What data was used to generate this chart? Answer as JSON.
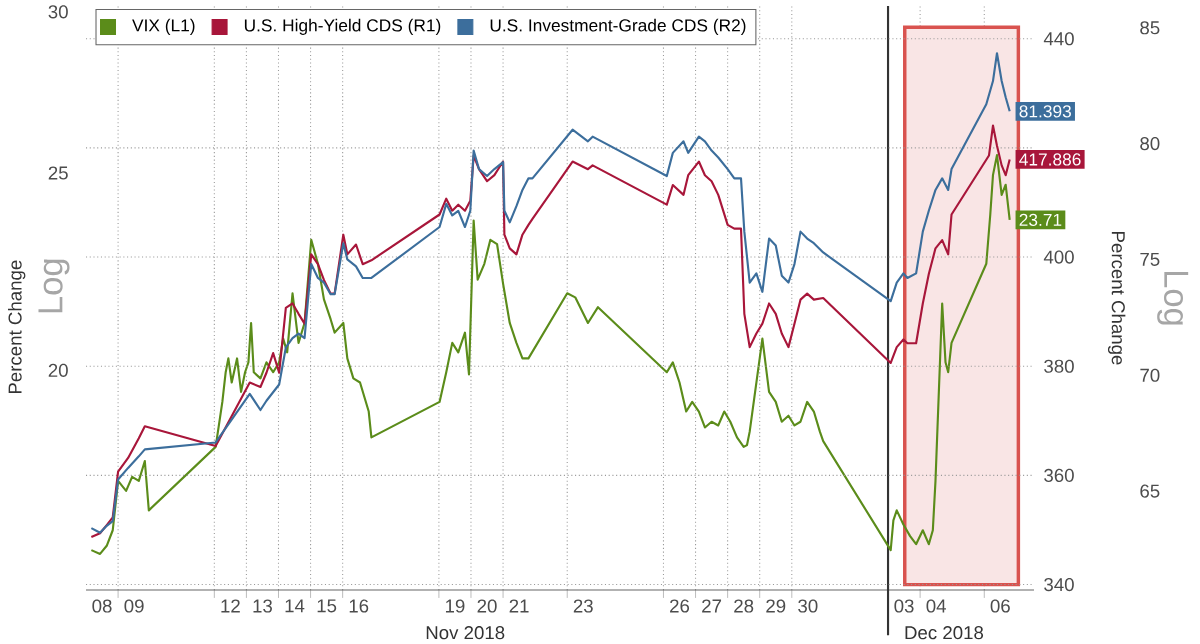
{
  "chart_data": {
    "type": "line",
    "ylabel": "Percent Change",
    "y2label": "Percent Change",
    "annotations": [
      "Nov 2018",
      "Dec 2018",
      "Log",
      "Log"
    ],
    "xlim": [
      "2018-11-08T00:00",
      "2018-12-07T13:12"
    ],
    "xticks": [
      {
        "value": "2018-11-08T12:00",
        "label": "08"
      },
      {
        "value": "2018-11-09T12:00",
        "label": "09"
      },
      {
        "value": "2018-11-12T12:00",
        "label": "12"
      },
      {
        "value": "2018-11-13T12:00",
        "label": "13"
      },
      {
        "value": "2018-11-14T12:00",
        "label": "14"
      },
      {
        "value": "2018-11-15T12:00",
        "label": "15"
      },
      {
        "value": "2018-11-16T12:00",
        "label": "16"
      },
      {
        "value": "2018-11-19T12:00",
        "label": "19"
      },
      {
        "value": "2018-11-20T12:00",
        "label": "20"
      },
      {
        "value": "2018-11-21T12:00",
        "label": "21"
      },
      {
        "value": "2018-11-23T12:00",
        "label": "23"
      },
      {
        "value": "2018-11-26T12:00",
        "label": "26"
      },
      {
        "value": "2018-11-27T12:00",
        "label": "27"
      },
      {
        "value": "2018-11-28T12:00",
        "label": "28"
      },
      {
        "value": "2018-11-29T12:00",
        "label": "29"
      },
      {
        "value": "2018-11-30T12:00",
        "label": "30"
      },
      {
        "value": "2018-12-03T12:00",
        "label": "03"
      },
      {
        "value": "2018-12-04T12:00",
        "label": "04"
      },
      {
        "value": "2018-12-06T12:00",
        "label": "06"
      }
    ],
    "ylim": [
      15.6,
      30.2
    ],
    "yticks": [
      20,
      25,
      30
    ],
    "log": "y",
    "y2lim": [
      339,
      446
    ],
    "y2ticks": [
      340,
      360,
      380,
      400,
      {
        "value": 420,
        "label": null
      },
      440
    ],
    "y3lim": [
      60.73,
      85.94
    ],
    "y3ticks": [
      65,
      70,
      75,
      80,
      85
    ],
    "grid": true,
    "legend": "top left",
    "ref_lines": [
      {
        "axis": "x",
        "value": "2018-12-03",
        "color": "#333333"
      }
    ],
    "bands": [
      {
        "axis": "x",
        "from": "2018-12-03T12:30",
        "to": "2018-12-07T01:30",
        "color": "#d9534f"
      }
    ],
    "series": [
      {
        "name": "VIX (L1)",
        "color": "#5b8c1a",
        "axis": "y",
        "x": [
          "2018-11-08T04:00",
          "2018-11-08T10:30",
          "2018-11-08T15:30",
          "2018-11-08T20:00",
          "2018-11-09T00:00",
          "2018-11-09T06:00",
          "2018-11-09T10:30",
          "2018-11-09T15:30",
          "2018-11-09T20:00",
          "2018-11-09T23:00",
          "2018-11-12T01:00",
          "2018-11-12T06:00",
          "2018-11-12T08:30",
          "2018-11-12T10:30",
          "2018-11-12T13:00",
          "2018-11-12T17:00",
          "2018-11-12T20:00",
          "2018-11-12T23:00",
          "2018-11-13T01:30",
          "2018-11-13T03:30",
          "2018-11-13T05:30",
          "2018-11-13T10:30",
          "2018-11-13T15:00",
          "2018-11-13T20:00",
          "2018-11-14T00:30",
          "2018-11-14T03:30",
          "2018-11-14T06:30",
          "2018-11-14T10:30",
          "2018-11-14T15:00",
          "2018-11-14T19:30",
          "2018-11-15T00:30",
          "2018-11-15T05:30",
          "2018-11-15T10:00",
          "2018-11-15T15:00",
          "2018-11-15T18:00",
          "2018-11-16T00:30",
          "2018-11-16T03:30",
          "2018-11-16T08:00",
          "2018-11-16T13:00",
          "2018-11-16T19:30",
          "2018-11-16T21:30",
          "2018-11-19T00:30",
          "2018-11-19T05:30",
          "2018-11-19T10:00",
          "2018-11-19T14:30",
          "2018-11-19T19:30",
          "2018-11-19T22:30",
          "2018-11-20T02:00",
          "2018-11-20T05:00",
          "2018-11-20T10:00",
          "2018-11-20T14:30",
          "2018-11-20T19:30",
          "2018-11-21T00:00",
          "2018-11-21T05:00",
          "2018-11-21T10:00",
          "2018-11-21T14:30",
          "2018-11-21T19:00",
          "2018-11-23T00:00",
          "2018-11-23T06:00",
          "2018-11-23T15:30",
          "2018-11-23T23:00",
          "2018-11-26T02:30",
          "2018-11-26T07:00",
          "2018-11-26T12:00",
          "2018-11-26T17:00",
          "2018-11-26T21:30",
          "2018-11-27T02:30",
          "2018-11-27T07:00",
          "2018-11-27T12:00",
          "2018-11-27T17:00",
          "2018-11-27T21:30",
          "2018-11-28T02:00",
          "2018-11-28T07:00",
          "2018-11-28T12:00",
          "2018-11-28T14:30",
          "2018-11-28T16:30",
          "2018-11-29T02:00",
          "2018-11-29T07:00",
          "2018-11-29T12:00",
          "2018-11-29T16:30",
          "2018-11-29T21:30",
          "2018-11-30T02:00",
          "2018-11-30T06:30",
          "2018-11-30T11:30",
          "2018-11-30T16:30",
          "2018-11-30T21:00",
          "2018-11-30T23:30",
          "2018-12-03T02:00",
          "2018-12-03T04:00",
          "2018-12-03T06:30",
          "2018-12-03T11:30",
          "2018-12-03T16:30",
          "2018-12-03T21:00",
          "2018-12-04T02:00",
          "2018-12-04T06:30",
          "2018-12-04T09:30",
          "2018-12-04T11:30",
          "2018-12-04T16:30",
          "2018-12-04T19:00",
          "2018-12-04T21:00",
          "2018-12-04T23:30",
          "2018-12-06T01:30",
          "2018-12-06T04:30",
          "2018-12-06T06:30",
          "2018-12-06T09:30",
          "2018-12-06T13:00",
          "2018-12-06T16:00",
          "2018-12-06T19:00"
        ],
        "values": [
          16.32,
          16.25,
          16.4,
          16.69,
          17.65,
          17.45,
          17.73,
          17.65,
          18.05,
          17.07,
          18.34,
          19.3,
          19.96,
          20.27,
          19.73,
          20.27,
          19.52,
          19.96,
          20.18,
          21.1,
          19.96,
          19.82,
          20.18,
          19.96,
          20.18,
          20.73,
          20.41,
          21.82,
          20.63,
          21.1,
          23.18,
          22.56,
          21.67,
          21.19,
          20.87,
          21.1,
          20.27,
          19.82,
          19.73,
          19.09,
          18.54,
          19.3,
          19.96,
          20.63,
          20.41,
          20.87,
          19.91,
          23.69,
          22.16,
          22.56,
          23.18,
          23.07,
          22.06,
          21.1,
          20.63,
          20.27,
          20.27,
          21.82,
          21.72,
          21.1,
          21.48,
          19.96,
          20.18,
          19.73,
          19.09,
          19.3,
          19.09,
          18.75,
          18.87,
          18.79,
          19.09,
          18.87,
          18.54,
          18.34,
          18.38,
          18.66,
          20.73,
          19.52,
          19.3,
          18.87,
          19.0,
          18.79,
          18.87,
          19.3,
          19.09,
          18.66,
          18.46,
          16.32,
          16.88,
          17.07,
          16.8,
          16.58,
          16.43,
          16.69,
          16.43,
          16.69,
          17.65,
          21.57,
          20.18,
          19.96,
          20.63,
          22.56,
          23.86,
          24.94,
          25.51,
          24.39,
          24.67,
          23.71
        ],
        "value_labels": [
          null,
          null,
          null,
          null,
          null,
          null,
          null,
          null,
          null,
          null,
          null,
          null,
          null,
          null,
          null,
          null,
          null,
          null,
          null,
          null,
          null,
          null,
          null,
          null,
          null,
          null,
          null,
          null,
          null,
          null,
          null,
          null,
          null,
          null,
          null,
          null,
          null,
          null,
          null,
          null,
          null,
          null,
          null,
          null,
          null,
          null,
          null,
          null,
          null,
          null,
          null,
          null,
          null,
          null,
          null,
          null,
          null,
          null,
          null,
          null,
          null,
          null,
          null,
          null,
          null,
          null,
          null,
          null,
          null,
          null,
          null,
          null,
          null,
          null,
          null,
          null,
          null,
          null,
          null,
          null,
          null,
          null,
          null,
          null,
          null,
          null,
          null,
          null,
          null,
          null,
          null,
          null,
          null,
          null,
          null,
          null,
          null,
          null,
          null,
          null,
          null,
          null,
          null,
          null,
          null,
          null,
          null,
          "23.71"
        ]
      },
      {
        "name": "U.S. High-Yield CDS (R1)",
        "color": "#a8163a",
        "axis": "y2",
        "x": [
          "2018-11-08T04:00",
          "2018-11-08T10:30",
          "2018-11-08T15:30",
          "2018-11-08T20:00",
          "2018-11-09T00:00",
          "2018-11-09T07:30",
          "2018-11-09T15:30",
          "2018-11-09T20:00",
          "2018-11-12T01:00",
          "2018-11-13T02:30",
          "2018-11-13T10:30",
          "2018-11-13T15:00",
          "2018-11-13T20:00",
          "2018-11-14T00:30",
          "2018-11-14T05:30",
          "2018-11-14T10:30",
          "2018-11-14T15:00",
          "2018-11-14T19:30",
          "2018-11-15T00:30",
          "2018-11-15T05:30",
          "2018-11-15T10:00",
          "2018-11-15T15:00",
          "2018-11-15T18:00",
          "2018-11-16T00:30",
          "2018-11-16T03:30",
          "2018-11-16T10:00",
          "2018-11-16T15:00",
          "2018-11-16T21:30",
          "2018-11-19T00:30",
          "2018-11-19T05:30",
          "2018-11-19T10:00",
          "2018-11-19T14:30",
          "2018-11-19T19:30",
          "2018-11-19T23:30",
          "2018-11-20T02:00",
          "2018-11-20T06:00",
          "2018-11-20T12:00",
          "2018-11-20T17:30",
          "2018-11-21T00:00",
          "2018-11-21T01:00",
          "2018-11-21T05:00",
          "2018-11-21T10:00",
          "2018-11-21T14:30",
          "2018-11-21T19:00",
          "2018-11-21T22:00",
          "2018-11-23T04:00",
          "2018-11-23T15:30",
          "2018-11-23T19:00",
          "2018-11-26T02:30",
          "2018-11-26T07:00",
          "2018-11-26T15:00",
          "2018-11-26T18:30",
          "2018-11-27T02:30",
          "2018-11-27T07:00",
          "2018-11-27T12:00",
          "2018-11-27T17:00",
          "2018-11-28T00:00",
          "2018-11-28T05:00",
          "2018-11-28T10:00",
          "2018-11-28T12:30",
          "2018-11-28T16:30",
          "2018-11-28T21:30",
          "2018-11-29T02:00",
          "2018-11-29T07:00",
          "2018-11-29T12:00",
          "2018-11-29T16:30",
          "2018-11-29T21:30",
          "2018-11-30T02:00",
          "2018-11-30T06:30",
          "2018-11-30T11:30",
          "2018-11-30T16:30",
          "2018-11-30T23:30",
          "2018-12-03T02:00",
          "2018-12-03T06:30",
          "2018-12-03T11:30",
          "2018-12-03T14:30",
          "2018-12-03T21:00",
          "2018-12-04T02:00",
          "2018-12-04T06:30",
          "2018-12-04T11:30",
          "2018-12-04T16:30",
          "2018-12-04T21:00",
          "2018-12-04T23:30",
          "2018-12-06T03:30",
          "2018-12-06T06:30",
          "2018-12-06T09:30",
          "2018-12-06T13:00",
          "2018-12-06T16:00",
          "2018-12-06T19:00"
        ],
        "values": [
          348.7,
          349.4,
          350.9,
          352.3,
          360.7,
          363.2,
          366.8,
          369.0,
          365.4,
          377.0,
          376.2,
          378.8,
          382.4,
          378.8,
          390.7,
          391.5,
          389.6,
          387.8,
          400.5,
          398.7,
          395.8,
          393.3,
          393.3,
          404.1,
          400.5,
          402.3,
          398.7,
          399.4,
          407.8,
          410.7,
          408.5,
          409.6,
          408.5,
          410.3,
          418.6,
          416.1,
          413.9,
          415.0,
          417.5,
          404.1,
          401.6,
          400.5,
          404.1,
          405.9,
          407.0,
          417.5,
          416.1,
          416.8,
          409.6,
          413.2,
          411.4,
          415.0,
          417.5,
          415.0,
          413.9,
          411.4,
          405.9,
          405.2,
          405.2,
          389.6,
          383.5,
          386.0,
          387.8,
          391.5,
          389.6,
          386.0,
          383.5,
          387.8,
          392.2,
          393.3,
          392.2,
          392.5,
          380.6,
          383.5,
          384.9,
          384.2,
          384.2,
          391.5,
          396.9,
          401.6,
          403.1,
          400.5,
          407.8,
          418.6,
          424.1,
          420.4,
          416.8,
          415.0,
          417.886
        ],
        "value_labels": [
          null,
          null,
          null,
          null,
          null,
          null,
          null,
          null,
          null,
          null,
          null,
          null,
          null,
          null,
          null,
          null,
          null,
          null,
          null,
          null,
          null,
          null,
          null,
          null,
          null,
          null,
          null,
          null,
          null,
          null,
          null,
          null,
          null,
          null,
          null,
          null,
          null,
          null,
          null,
          null,
          null,
          null,
          null,
          null,
          null,
          null,
          null,
          null,
          null,
          null,
          null,
          null,
          null,
          null,
          null,
          null,
          null,
          null,
          null,
          null,
          null,
          null,
          null,
          null,
          null,
          null,
          null,
          null,
          null,
          null,
          null,
          null,
          null,
          null,
          null,
          null,
          null,
          null,
          null,
          null,
          null,
          null,
          null,
          null,
          null,
          null,
          null,
          null,
          "417.886"
        ]
      },
      {
        "name": "U.S. Investment-Grade CDS (R2)",
        "color": "#3c6e9c",
        "axis": "y3",
        "x": [
          "2018-11-08T04:00",
          "2018-11-08T10:30",
          "2018-11-08T15:30",
          "2018-11-08T20:00",
          "2018-11-09T00:00",
          "2018-11-09T07:30",
          "2018-11-09T15:30",
          "2018-11-09T20:00",
          "2018-11-12T01:00",
          "2018-11-13T02:30",
          "2018-11-13T10:30",
          "2018-11-13T15:00",
          "2018-11-14T00:30",
          "2018-11-14T05:30",
          "2018-11-14T10:30",
          "2018-11-14T15:00",
          "2018-11-14T19:30",
          "2018-11-15T00:30",
          "2018-11-15T05:30",
          "2018-11-15T10:00",
          "2018-11-15T15:00",
          "2018-11-15T18:00",
          "2018-11-16T00:30",
          "2018-11-16T03:30",
          "2018-11-16T10:00",
          "2018-11-16T15:00",
          "2018-11-16T21:30",
          "2018-11-19T00:30",
          "2018-11-19T05:30",
          "2018-11-19T10:00",
          "2018-11-19T14:30",
          "2018-11-19T19:30",
          "2018-11-19T23:30",
          "2018-11-20T02:00",
          "2018-11-20T06:00",
          "2018-11-20T12:00",
          "2018-11-20T17:30",
          "2018-11-21T00:00",
          "2018-11-21T01:00",
          "2018-11-21T05:00",
          "2018-11-21T10:00",
          "2018-11-21T14:30",
          "2018-11-21T19:00",
          "2018-11-21T22:00",
          "2018-11-23T04:00",
          "2018-11-23T15:30",
          "2018-11-23T19:00",
          "2018-11-26T02:30",
          "2018-11-26T07:00",
          "2018-11-26T15:00",
          "2018-11-26T18:30",
          "2018-11-27T02:30",
          "2018-11-27T07:00",
          "2018-11-27T12:00",
          "2018-11-27T17:00",
          "2018-11-28T00:00",
          "2018-11-28T05:00",
          "2018-11-28T10:00",
          "2018-11-28T12:30",
          "2018-11-28T16:30",
          "2018-11-28T21:30",
          "2018-11-29T02:00",
          "2018-11-29T07:00",
          "2018-11-29T12:00",
          "2018-11-29T16:30",
          "2018-11-29T21:30",
          "2018-11-30T02:00",
          "2018-11-30T06:30",
          "2018-11-30T11:30",
          "2018-11-30T16:30",
          "2018-11-30T23:30",
          "2018-12-03T02:00",
          "2018-12-03T06:30",
          "2018-12-03T11:30",
          "2018-12-03T14:30",
          "2018-12-03T21:00",
          "2018-12-04T02:00",
          "2018-12-04T06:30",
          "2018-12-04T11:30",
          "2018-12-04T16:30",
          "2018-12-04T21:00",
          "2018-12-04T23:30",
          "2018-12-06T01:30",
          "2018-12-06T06:30",
          "2018-12-06T09:30",
          "2018-12-06T13:00",
          "2018-12-06T16:00",
          "2018-12-06T19:00"
        ],
        "values": [
          63.4,
          63.2,
          63.5,
          63.7,
          65.5,
          66.0,
          66.5,
          66.8,
          67.1,
          69.2,
          68.5,
          68.9,
          69.6,
          71.2,
          71.6,
          71.8,
          71.6,
          74.8,
          74.2,
          74.0,
          73.5,
          73.5,
          75.7,
          75.0,
          74.7,
          74.2,
          74.2,
          76.4,
          77.4,
          76.9,
          77.1,
          76.4,
          77.1,
          79.7,
          78.9,
          78.6,
          78.9,
          79.2,
          77.1,
          76.6,
          77.3,
          78.0,
          78.5,
          78.5,
          80.6,
          80.1,
          80.3,
          78.6,
          79.6,
          80.1,
          79.6,
          80.3,
          80.1,
          79.7,
          79.4,
          78.9,
          78.5,
          78.5,
          76.2,
          74.0,
          74.4,
          73.6,
          75.9,
          75.6,
          74.3,
          74.0,
          74.8,
          76.2,
          75.9,
          75.7,
          75.3,
          73.2,
          74.0,
          74.4,
          74.2,
          74.4,
          76.2,
          77.1,
          78.0,
          78.5,
          78.0,
          78.9,
          81.7,
          82.7,
          83.9,
          82.7,
          82.0,
          81.393
        ],
        "value_labels": [
          null,
          null,
          null,
          null,
          null,
          null,
          null,
          null,
          null,
          null,
          null,
          null,
          null,
          null,
          null,
          null,
          null,
          null,
          null,
          null,
          null,
          null,
          null,
          null,
          null,
          null,
          null,
          null,
          null,
          null,
          null,
          null,
          null,
          null,
          null,
          null,
          null,
          null,
          null,
          null,
          null,
          null,
          null,
          null,
          null,
          null,
          null,
          null,
          null,
          null,
          null,
          null,
          null,
          null,
          null,
          null,
          null,
          null,
          null,
          null,
          null,
          null,
          null,
          null,
          null,
          null,
          null,
          null,
          null,
          null,
          null,
          null,
          null,
          null,
          null,
          null,
          null,
          null,
          null,
          null,
          null,
          null,
          null,
          null,
          null,
          null,
          null,
          "81.393"
        ]
      }
    ]
  }
}
